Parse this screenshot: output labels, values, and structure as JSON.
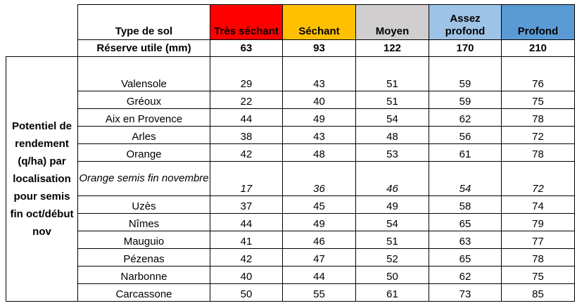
{
  "header": {
    "type_label": "Type de sol",
    "reserve_label": "Réserve utile (mm)",
    "columns": [
      {
        "label": "Très séchant",
        "color": "#FF0000",
        "reserve": "63"
      },
      {
        "label": "Séchant",
        "color": "#FFC000",
        "reserve": "93"
      },
      {
        "label": "Moyen",
        "color": "#D0CECE",
        "reserve": "122"
      },
      {
        "label": "Assez profond",
        "color": "#9DC3E6",
        "reserve": "170"
      },
      {
        "label": "Profond",
        "color": "#5B9BD5",
        "reserve": "210"
      }
    ]
  },
  "side_label": "Potentiel de rendement (q/ha) par localisation pour semis fin oct/début nov",
  "rows": [
    {
      "location": "Valensole",
      "values": [
        "29",
        "43",
        "51",
        "59",
        "76"
      ]
    },
    {
      "location": "Gréoux",
      "values": [
        "22",
        "40",
        "51",
        "59",
        "75"
      ]
    },
    {
      "location": "Aix en Provence",
      "values": [
        "44",
        "49",
        "54",
        "62",
        "78"
      ]
    },
    {
      "location": "Arles",
      "values": [
        "38",
        "43",
        "48",
        "56",
        "72"
      ]
    },
    {
      "location": "Orange",
      "values": [
        "42",
        "48",
        "53",
        "61",
        "78"
      ]
    },
    {
      "location": "Orange semis fin novembre",
      "values": [
        "17",
        "36",
        "46",
        "54",
        "72"
      ]
    },
    {
      "location": "Uzès",
      "values": [
        "37",
        "45",
        "49",
        "58",
        "74"
      ]
    },
    {
      "location": "Nîmes",
      "values": [
        "44",
        "49",
        "54",
        "65",
        "79"
      ]
    },
    {
      "location": "Mauguio",
      "values": [
        "41",
        "46",
        "51",
        "63",
        "77"
      ]
    },
    {
      "location": "Pézenas",
      "values": [
        "42",
        "47",
        "52",
        "65",
        "78"
      ]
    },
    {
      "location": "Narbonne",
      "values": [
        "40",
        "44",
        "50",
        "62",
        "75"
      ]
    },
    {
      "location": "Carcassone",
      "values": [
        "50",
        "55",
        "61",
        "73",
        "85"
      ]
    }
  ]
}
